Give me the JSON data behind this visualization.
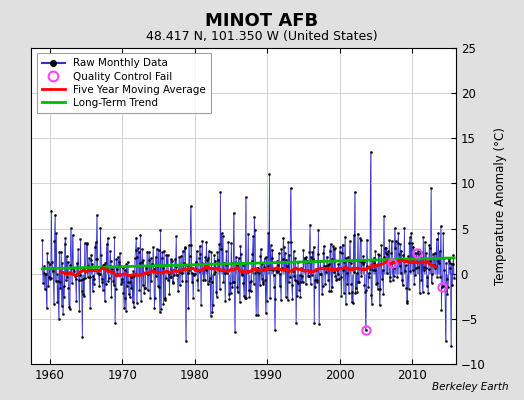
{
  "title": "MINOT AFB",
  "subtitle": "48.417 N, 101.350 W (United States)",
  "ylabel": "Temperature Anomaly (°C)",
  "attribution": "Berkeley Earth",
  "xlim": [
    1957.5,
    2016.0
  ],
  "ylim": [
    -10,
    25
  ],
  "yticks": [
    -10,
    -5,
    0,
    5,
    10,
    15,
    20,
    25
  ],
  "xticks": [
    1960,
    1970,
    1980,
    1990,
    2000,
    2010
  ],
  "fig_bg_color": "#e0e0e0",
  "plot_bg_color": "#ffffff",
  "raw_line_color": "#3333cc",
  "raw_marker_color": "#000000",
  "moving_avg_color": "#ff0000",
  "trend_color": "#00bb00",
  "qc_fail_color": "#ff44ff",
  "grid_color": "#cccccc",
  "seed": 7
}
